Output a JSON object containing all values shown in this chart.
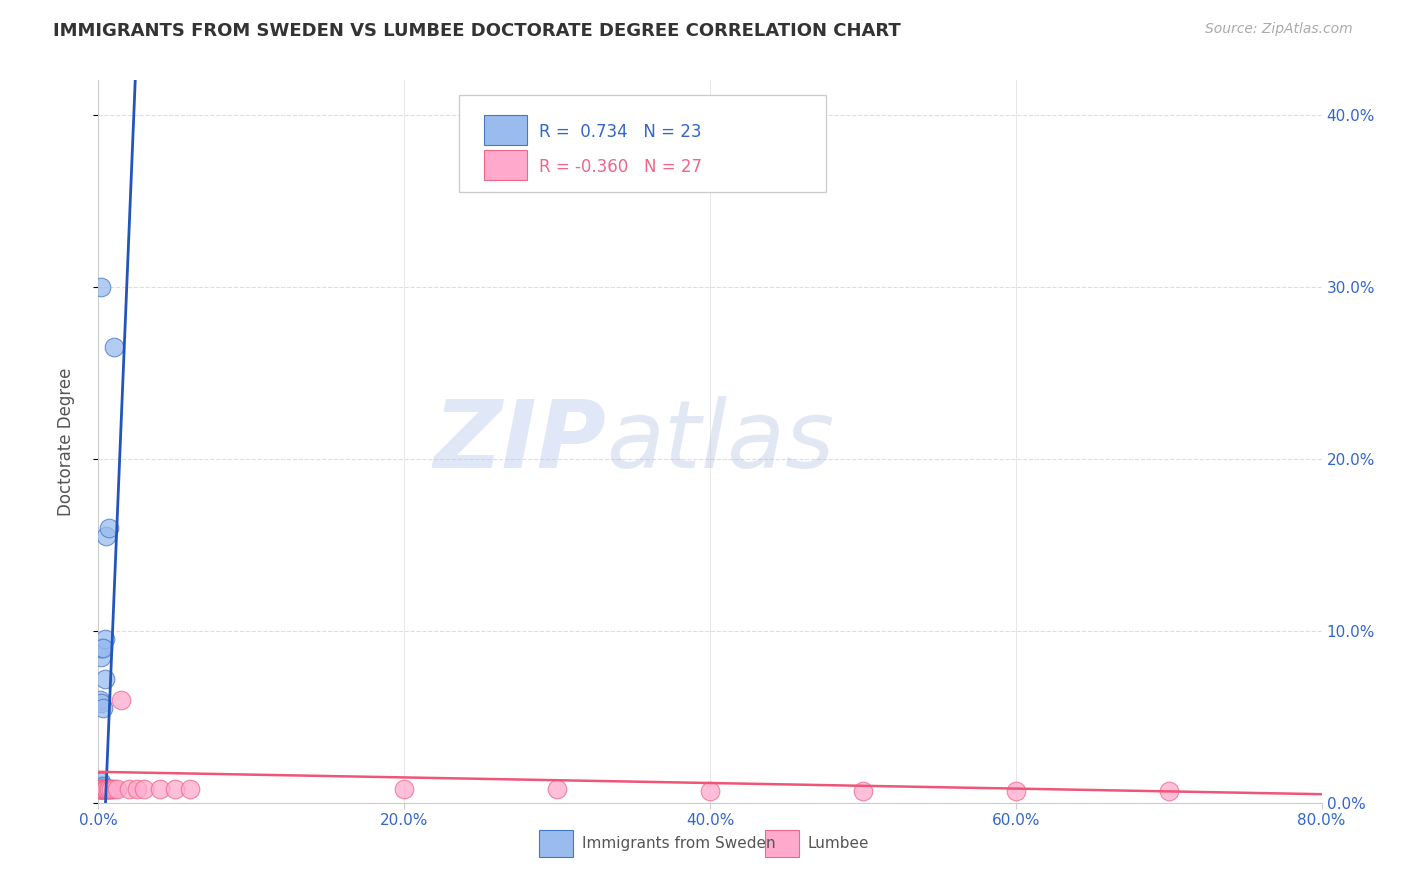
{
  "title": "IMMIGRANTS FROM SWEDEN VS LUMBEE DOCTORATE DEGREE CORRELATION CHART",
  "source": "Source: ZipAtlas.com",
  "ylabel": "Doctorate Degree",
  "xlim": [
    0.0,
    0.8
  ],
  "ylim": [
    0.0,
    0.42
  ],
  "yticks": [
    0.0,
    0.1,
    0.2,
    0.3,
    0.4
  ],
  "ytick_labels_right": [
    "0.0%",
    "10.0%",
    "20.0%",
    "30.0%",
    "40.0%"
  ],
  "xticks": [
    0.0,
    0.2,
    0.4,
    0.6,
    0.8
  ],
  "xtick_labels": [
    "0.0%",
    "20.0%",
    "40.0%",
    "60.0%",
    "80.0%"
  ],
  "legend_r_blue": "0.734",
  "legend_n_blue": "23",
  "legend_r_pink": "-0.360",
  "legend_n_pink": "27",
  "legend_label_blue": "Immigrants from Sweden",
  "legend_label_pink": "Lumbee",
  "blue_face_color": "#99BBEE",
  "blue_edge_color": "#4477CC",
  "pink_face_color": "#FFAACC",
  "pink_edge_color": "#EE6688",
  "blue_line_color": "#2255BB",
  "pink_line_color": "#EE5577",
  "blue_scatter": [
    [
      0.001,
      0.008
    ],
    [
      0.001,
      0.008
    ],
    [
      0.001,
      0.01
    ],
    [
      0.002,
      0.008
    ],
    [
      0.002,
      0.009
    ],
    [
      0.002,
      0.012
    ],
    [
      0.002,
      0.085
    ],
    [
      0.002,
      0.09
    ],
    [
      0.003,
      0.009
    ],
    [
      0.003,
      0.01
    ],
    [
      0.003,
      0.008
    ],
    [
      0.004,
      0.095
    ],
    [
      0.005,
      0.155
    ],
    [
      0.006,
      0.008
    ],
    [
      0.007,
      0.16
    ],
    [
      0.002,
      0.3
    ],
    [
      0.008,
      0.008
    ],
    [
      0.01,
      0.265
    ],
    [
      0.001,
      0.06
    ],
    [
      0.002,
      0.058
    ],
    [
      0.003,
      0.055
    ],
    [
      0.003,
      0.09
    ],
    [
      0.004,
      0.072
    ]
  ],
  "pink_scatter": [
    [
      0.001,
      0.008
    ],
    [
      0.002,
      0.008
    ],
    [
      0.002,
      0.008
    ],
    [
      0.003,
      0.008
    ],
    [
      0.003,
      0.008
    ],
    [
      0.004,
      0.008
    ],
    [
      0.004,
      0.008
    ],
    [
      0.005,
      0.008
    ],
    [
      0.005,
      0.008
    ],
    [
      0.006,
      0.008
    ],
    [
      0.007,
      0.008
    ],
    [
      0.008,
      0.008
    ],
    [
      0.01,
      0.008
    ],
    [
      0.012,
      0.008
    ],
    [
      0.015,
      0.06
    ],
    [
      0.02,
      0.008
    ],
    [
      0.025,
      0.008
    ],
    [
      0.03,
      0.008
    ],
    [
      0.04,
      0.008
    ],
    [
      0.05,
      0.008
    ],
    [
      0.06,
      0.008
    ],
    [
      0.2,
      0.008
    ],
    [
      0.3,
      0.008
    ],
    [
      0.4,
      0.007
    ],
    [
      0.5,
      0.007
    ],
    [
      0.6,
      0.007
    ],
    [
      0.7,
      0.007
    ]
  ],
  "blue_regline": [
    [
      0.0,
      -0.1
    ],
    [
      0.025,
      0.44
    ]
  ],
  "pink_regline": [
    [
      0.0,
      0.018
    ],
    [
      0.8,
      0.005
    ]
  ],
  "watermark_zip": "ZIP",
  "watermark_atlas": "atlas",
  "background_color": "#FFFFFF",
  "grid_color": "#DDDDDD",
  "title_fontsize": 13,
  "tick_fontsize": 11,
  "axis_label_color": "#3366CC",
  "left_ytick_color": "#AAAAAA"
}
